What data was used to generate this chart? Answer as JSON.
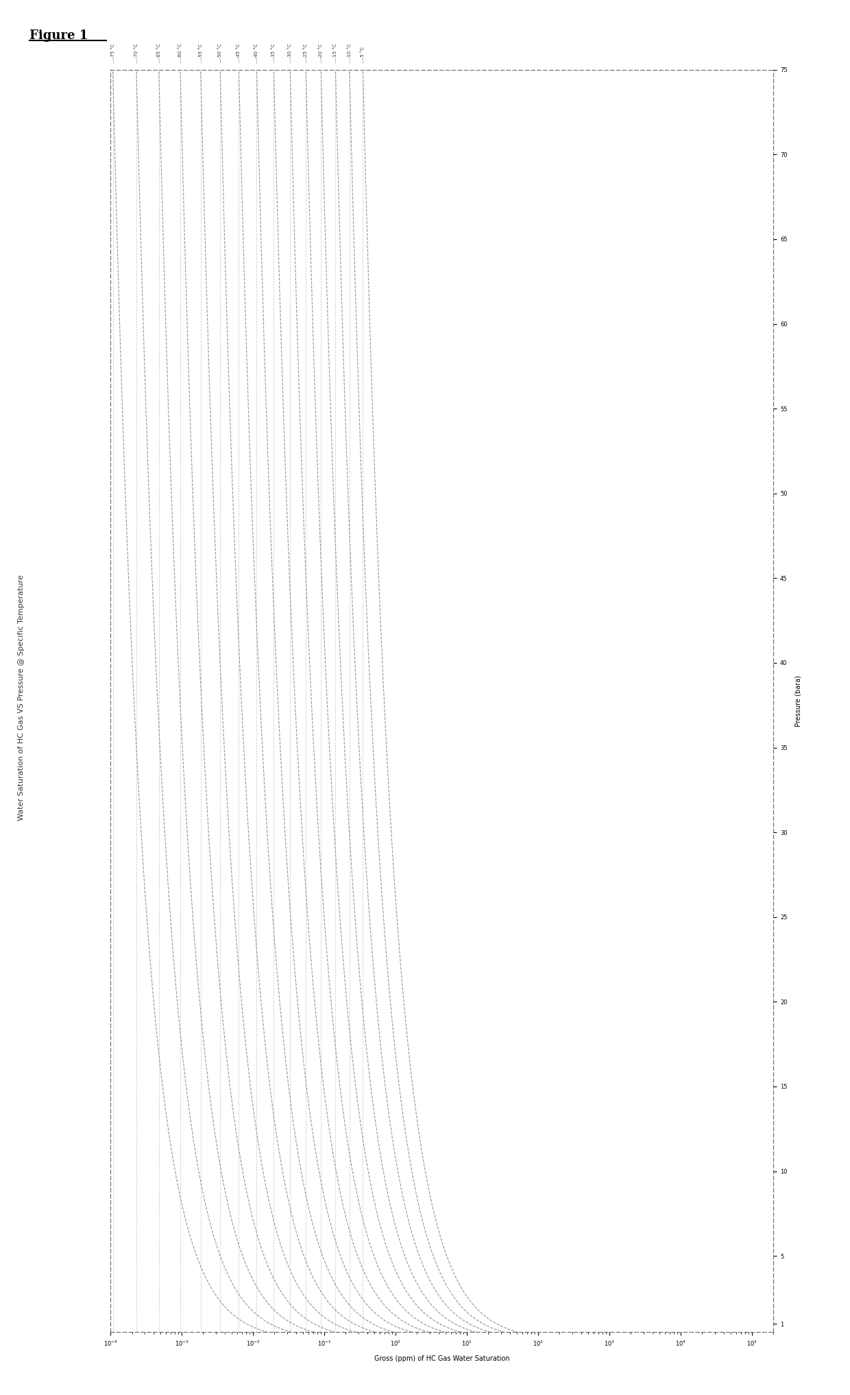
{
  "figure_title": "Figure 1",
  "chart_title": "Water Saturation of HC Gas VS Pressure @ Specific Temperature",
  "chart_xlabel": "Gross (ppm) of HC Gas Water Saturation",
  "pressure_ylabel": "Pressure (bara)",
  "temperatures_C": [
    -5,
    -10,
    -15,
    -20,
    -25,
    -30,
    -35,
    -40,
    -45,
    -50,
    -55,
    -60,
    -65,
    -70,
    -75
  ],
  "pressure_min": 0.5,
  "pressure_max": 75,
  "ppm_min": 0.0001,
  "ppm_max": 10000,
  "line_color": "#888888",
  "line_style": "--",
  "line_width": 0.8,
  "bg_color": "#ffffff",
  "border_color": "#666666",
  "y_ticks": [
    1,
    5,
    10,
    15,
    20,
    25,
    30,
    35,
    40,
    45,
    50,
    55,
    60,
    65,
    70,
    75
  ],
  "y_tick_labels": [
    "1",
    "5",
    "10",
    "15",
    "20",
    "25",
    "30",
    "35",
    "40",
    "45",
    "50",
    "55",
    "60",
    "65",
    "70",
    "75"
  ]
}
